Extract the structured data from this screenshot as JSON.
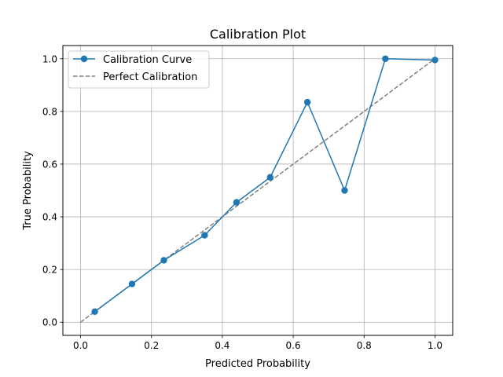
{
  "chart_data": {
    "type": "line",
    "title": "Calibration Plot",
    "xlabel": "Predicted Probability",
    "ylabel": "True Probability",
    "xlim": [
      -0.05,
      1.05
    ],
    "ylim": [
      -0.05,
      1.05
    ],
    "x_ticks": [
      "0.0",
      "0.2",
      "0.4",
      "0.6",
      "0.8",
      "1.0"
    ],
    "y_ticks": [
      "0.0",
      "0.2",
      "0.4",
      "0.6",
      "0.8",
      "1.0"
    ],
    "grid": true,
    "legend": "top-left",
    "series": [
      {
        "name": "Calibration Curve",
        "style": "solid-with-markers",
        "color": "#1f77b4",
        "x": [
          0.04,
          0.145,
          0.235,
          0.35,
          0.44,
          0.535,
          0.64,
          0.745,
          0.86,
          1.0
        ],
        "y": [
          0.04,
          0.145,
          0.235,
          0.33,
          0.455,
          0.55,
          0.835,
          0.5,
          1.0,
          0.995
        ]
      },
      {
        "name": "Perfect Calibration",
        "style": "dashed",
        "color": "#808080",
        "x": [
          0.0,
          1.0
        ],
        "y": [
          0.0,
          1.0
        ]
      }
    ]
  }
}
